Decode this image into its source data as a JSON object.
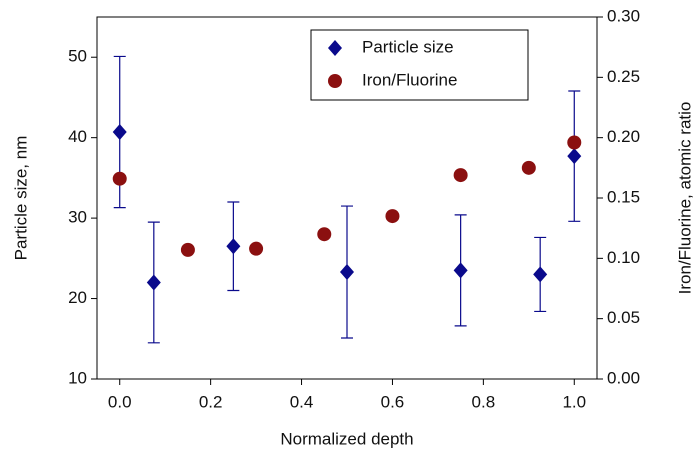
{
  "chart_data": {
    "type": "scatter",
    "xlabel": "Normalized depth",
    "ylabel": "Particle size, nm",
    "y2label": "Iron/Fluorine, atomic ratio",
    "xlim": [
      -0.05,
      1.05
    ],
    "xticks": [
      {
        "value": 0,
        "label": "0.0"
      },
      0.2,
      0.4,
      0.6,
      0.8,
      {
        "value": 1,
        "label": "1.0"
      }
    ],
    "ylim": [
      10,
      55
    ],
    "yticks": [
      10,
      20,
      30,
      40,
      50
    ],
    "y2lim": [
      0,
      0.3
    ],
    "y2ticks": [
      {
        "value": 0,
        "label": "0.00"
      },
      0.05,
      {
        "value": 0.1,
        "label": "0.10"
      },
      0.15,
      {
        "value": 0.2,
        "label": "0.20"
      },
      0.25,
      {
        "value": 0.3,
        "label": "0.30"
      }
    ],
    "legend": "upper right",
    "series": [
      {
        "name": "Particle size",
        "color": "#0a0a8c",
        "marker": "diamond",
        "x": [
          0,
          0.075,
          0.25,
          0.5,
          0.75,
          0.925,
          1
        ],
        "values": [
          40.7,
          22,
          26.5,
          23.3,
          23.5,
          23,
          37.7
        ],
        "errors": [
          9.4,
          7.5,
          5.5,
          8.2,
          6.9,
          4.6,
          8.1
        ]
      },
      {
        "name": "Iron/Fluorine",
        "color": "#8b1010",
        "marker": "circle",
        "axis": "y2",
        "x": [
          0,
          0.15,
          0.3,
          0.45,
          0.6,
          0.75,
          0.9,
          1
        ],
        "values": [
          0.166,
          0.107,
          0.108,
          0.12,
          0.135,
          0.169,
          0.175,
          0.196
        ]
      }
    ]
  }
}
